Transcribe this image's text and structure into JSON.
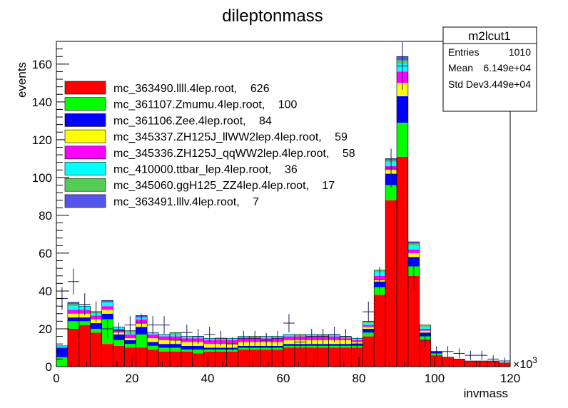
{
  "chart_data": {
    "type": "bar",
    "stacked": true,
    "title": "dileptonmass",
    "xlabel": "invmass",
    "ylabel": "events",
    "x_multiplier_label": "×10",
    "x_multiplier_exp": "3",
    "xlim": [
      0,
      120
    ],
    "ylim": [
      0,
      172
    ],
    "x_ticks": [
      0,
      20,
      40,
      60,
      80,
      100,
      120
    ],
    "y_ticks": [
      0,
      20,
      40,
      60,
      80,
      100,
      120,
      140,
      160
    ],
    "bin_width": 3,
    "x": [
      1.5,
      4.5,
      7.5,
      10.5,
      13.5,
      16.5,
      19.5,
      22.5,
      25.5,
      28.5,
      31.5,
      34.5,
      37.5,
      40.5,
      43.5,
      46.5,
      49.5,
      52.5,
      55.5,
      58.5,
      61.5,
      64.5,
      67.5,
      70.5,
      73.5,
      76.5,
      79.5,
      82.5,
      85.5,
      88.5,
      91.5,
      94.5,
      97.5,
      100.5,
      103.5,
      106.5,
      109.5,
      112.5,
      115.5,
      118.5
    ],
    "stats_box": {
      "title": "m2lcut1",
      "rows": [
        {
          "label": "Entries",
          "value": "1010"
        },
        {
          "label": "Mean",
          "value": "6.149e+04"
        },
        {
          "label": "Std Dev",
          "value": "3.449e+04"
        }
      ]
    },
    "legend_placement": "top-left",
    "series": [
      {
        "name": "mc_363490.llll.4lep.root, 626",
        "legend_label": "mc_363490.llll.4lep.root,",
        "count": "626",
        "color": "#ff0000",
        "values": [
          0,
          20,
          22,
          18,
          12,
          11,
          10,
          10,
          9,
          8,
          8,
          8,
          7,
          8,
          8,
          8,
          9,
          9,
          9,
          9,
          10,
          10,
          10,
          10,
          10,
          10,
          10,
          16,
          38,
          88,
          111,
          48,
          14,
          6,
          5,
          4,
          3,
          3,
          3,
          2
        ]
      },
      {
        "name": "mc_361107.Zmumu.4lep.root, 100",
        "legend_label": "mc_361107.Zmumu.4lep.root,",
        "count": "100",
        "color": "#00ff00",
        "values": [
          5,
          4,
          2,
          2,
          13,
          3,
          2,
          7,
          2,
          2,
          2,
          1,
          2,
          1,
          1,
          1,
          1,
          1,
          1,
          1,
          1,
          1,
          1,
          1,
          1,
          1,
          1,
          2,
          4,
          8,
          18,
          5,
          2,
          1,
          0,
          0,
          0,
          0,
          0,
          0
        ]
      },
      {
        "name": "mc_361106.Zee.4lep.root, 84",
        "legend_label": "mc_361106.Zee.4lep.root,",
        "count": "84",
        "color": "#0000ff",
        "values": [
          5,
          2,
          2,
          3,
          3,
          3,
          2,
          4,
          2,
          2,
          2,
          2,
          2,
          1,
          1,
          1,
          1,
          1,
          1,
          1,
          1,
          1,
          1,
          1,
          1,
          1,
          1,
          2,
          3,
          6,
          14,
          5,
          2,
          1,
          0,
          0,
          0,
          0,
          0,
          0
        ]
      },
      {
        "name": "mc_345337.ZH125J_llWW2lep.4lep.root, 59",
        "legend_label": "mc_345337.ZH125J_llWW2lep.4lep.root,",
        "count": "59",
        "color": "#ffff00",
        "values": [
          0,
          2,
          2,
          2,
          2,
          1,
          1,
          2,
          2,
          2,
          2,
          2,
          2,
          2,
          2,
          2,
          2,
          2,
          2,
          2,
          2,
          2,
          2,
          2,
          2,
          2,
          1,
          1,
          1,
          2,
          7,
          2,
          1,
          0,
          0,
          0,
          0,
          0,
          0,
          0
        ]
      },
      {
        "name": "mc_345336.ZH125J_qqWW2lep.4lep.root, 58",
        "legend_label": "mc_345336.ZH125J_qqWW2lep.4lep.root,",
        "count": "58",
        "color": "#ff00ff",
        "values": [
          0,
          2,
          2,
          2,
          2,
          2,
          2,
          2,
          2,
          2,
          2,
          2,
          2,
          2,
          2,
          2,
          2,
          2,
          2,
          2,
          2,
          2,
          2,
          2,
          2,
          1,
          1,
          1,
          2,
          2,
          6,
          2,
          1,
          0,
          0,
          0,
          0,
          0,
          0,
          0
        ]
      },
      {
        "name": "mc_410000.ttbar_lep.4lep.root, 36",
        "legend_label": "mc_410000.ttbar_lep.4lep.root,",
        "count": "36",
        "color": "#00ffff",
        "values": [
          1,
          2,
          2,
          1,
          2,
          1,
          1,
          1,
          1,
          1,
          1,
          1,
          1,
          1,
          0,
          1,
          1,
          0,
          1,
          1,
          1,
          0,
          1,
          0,
          1,
          0,
          1,
          1,
          2,
          2,
          4,
          2,
          1,
          0,
          0,
          0,
          0,
          0,
          0,
          0
        ]
      },
      {
        "name": "mc_345060.ggH125_ZZ4lep.4lep.root, 17",
        "legend_label": "mc_345060.ggH125_ZZ4lep.4lep.root,",
        "count": "17",
        "color": "#55cc55",
        "values": [
          0,
          1,
          0,
          1,
          0,
          0,
          1,
          0,
          0,
          0,
          1,
          0,
          0,
          0,
          1,
          0,
          0,
          1,
          0,
          0,
          0,
          1,
          0,
          1,
          0,
          1,
          0,
          1,
          1,
          1,
          2,
          1,
          1,
          0,
          0,
          0,
          0,
          0,
          0,
          0
        ]
      },
      {
        "name": "mc_363491.lllv.4lep.root, 7",
        "legend_label": "mc_363491.lllv.4lep.root,",
        "count": "7",
        "color": "#5555ee",
        "values": [
          0,
          1,
          0,
          0,
          1,
          0,
          0,
          1,
          0,
          0,
          0,
          0,
          0,
          0,
          0,
          0,
          0,
          0,
          0,
          0,
          0,
          0,
          0,
          0,
          0,
          0,
          0,
          0,
          0,
          1,
          2,
          1,
          0,
          0,
          0,
          0,
          0,
          0,
          0,
          0
        ]
      }
    ],
    "data_points": {
      "x": [
        1.5,
        4.5,
        7.5,
        10.5,
        13.5,
        16.5,
        19.5,
        22.5,
        25.5,
        28.5,
        31.5,
        34.5,
        37.5,
        40.5,
        43.5,
        46.5,
        49.5,
        52.5,
        55.5,
        58.5,
        61.5,
        64.5,
        67.5,
        70.5,
        73.5,
        76.5,
        79.5,
        82.5,
        85.5,
        88.5,
        91.5,
        94.5,
        97.5,
        100.5,
        103.5,
        106.5,
        109.5,
        112.5,
        115.5,
        118.5
      ],
      "y": [
        36,
        45,
        33,
        29,
        20,
        19,
        22,
        23,
        22,
        22,
        14,
        18,
        16,
        17,
        15,
        12,
        15,
        15,
        14,
        15,
        23,
        13,
        16,
        16,
        17,
        16,
        12,
        29,
        46,
        105,
        159,
        47,
        14,
        8,
        8,
        7,
        6,
        6,
        4,
        3
      ],
      "err_up": [
        6,
        6.8,
        5.8,
        5.5,
        4.5,
        4.4,
        4.7,
        4.8,
        4.7,
        4.7,
        3.7,
        4.2,
        4,
        4.1,
        3.9,
        3.5,
        3.9,
        3.9,
        3.7,
        3.9,
        4.8,
        3.6,
        4,
        4,
        4.1,
        4,
        3.5,
        5.4,
        6.8,
        10.2,
        12.6,
        6.9,
        3.7,
        2.8,
        2.8,
        2.6,
        2.4,
        2.4,
        2,
        1.7
      ]
    }
  }
}
